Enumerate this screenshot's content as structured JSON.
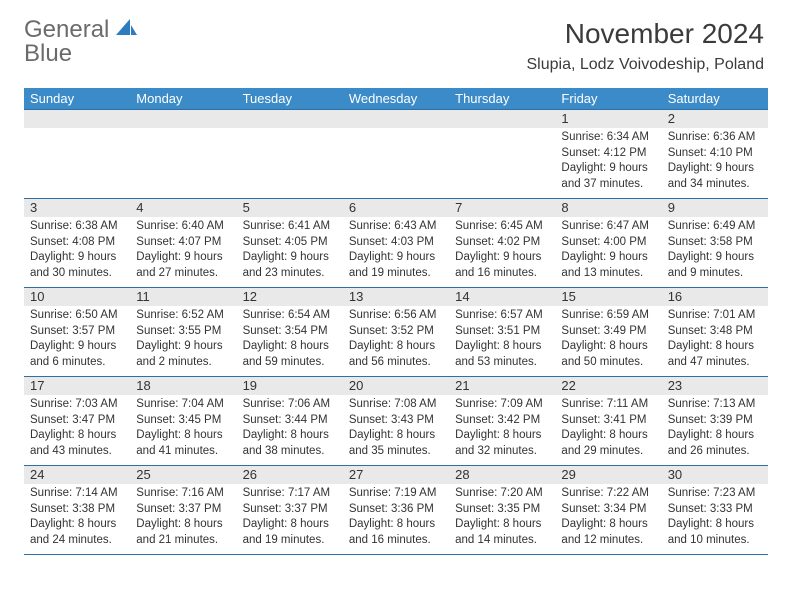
{
  "logo": {
    "word1": "General",
    "word2": "Blue"
  },
  "title": "November 2024",
  "location": "Slupia, Lodz Voivodeship, Poland",
  "colors": {
    "header_bg": "#3b8bc9",
    "rule": "#2f6fa6",
    "date_bg": "#e9e9e9",
    "logo_gray": "#6b6b6b",
    "logo_blue": "#2d7cc0",
    "text": "#333333"
  },
  "dow": [
    "Sunday",
    "Monday",
    "Tuesday",
    "Wednesday",
    "Thursday",
    "Friday",
    "Saturday"
  ],
  "weeks": [
    [
      {
        "date": "",
        "lines": []
      },
      {
        "date": "",
        "lines": []
      },
      {
        "date": "",
        "lines": []
      },
      {
        "date": "",
        "lines": []
      },
      {
        "date": "",
        "lines": []
      },
      {
        "date": "1",
        "lines": [
          "Sunrise: 6:34 AM",
          "Sunset: 4:12 PM",
          "Daylight: 9 hours",
          "and 37 minutes."
        ]
      },
      {
        "date": "2",
        "lines": [
          "Sunrise: 6:36 AM",
          "Sunset: 4:10 PM",
          "Daylight: 9 hours",
          "and 34 minutes."
        ]
      }
    ],
    [
      {
        "date": "3",
        "lines": [
          "Sunrise: 6:38 AM",
          "Sunset: 4:08 PM",
          "Daylight: 9 hours",
          "and 30 minutes."
        ]
      },
      {
        "date": "4",
        "lines": [
          "Sunrise: 6:40 AM",
          "Sunset: 4:07 PM",
          "Daylight: 9 hours",
          "and 27 minutes."
        ]
      },
      {
        "date": "5",
        "lines": [
          "Sunrise: 6:41 AM",
          "Sunset: 4:05 PM",
          "Daylight: 9 hours",
          "and 23 minutes."
        ]
      },
      {
        "date": "6",
        "lines": [
          "Sunrise: 6:43 AM",
          "Sunset: 4:03 PM",
          "Daylight: 9 hours",
          "and 19 minutes."
        ]
      },
      {
        "date": "7",
        "lines": [
          "Sunrise: 6:45 AM",
          "Sunset: 4:02 PM",
          "Daylight: 9 hours",
          "and 16 minutes."
        ]
      },
      {
        "date": "8",
        "lines": [
          "Sunrise: 6:47 AM",
          "Sunset: 4:00 PM",
          "Daylight: 9 hours",
          "and 13 minutes."
        ]
      },
      {
        "date": "9",
        "lines": [
          "Sunrise: 6:49 AM",
          "Sunset: 3:58 PM",
          "Daylight: 9 hours",
          "and 9 minutes."
        ]
      }
    ],
    [
      {
        "date": "10",
        "lines": [
          "Sunrise: 6:50 AM",
          "Sunset: 3:57 PM",
          "Daylight: 9 hours",
          "and 6 minutes."
        ]
      },
      {
        "date": "11",
        "lines": [
          "Sunrise: 6:52 AM",
          "Sunset: 3:55 PM",
          "Daylight: 9 hours",
          "and 2 minutes."
        ]
      },
      {
        "date": "12",
        "lines": [
          "Sunrise: 6:54 AM",
          "Sunset: 3:54 PM",
          "Daylight: 8 hours",
          "and 59 minutes."
        ]
      },
      {
        "date": "13",
        "lines": [
          "Sunrise: 6:56 AM",
          "Sunset: 3:52 PM",
          "Daylight: 8 hours",
          "and 56 minutes."
        ]
      },
      {
        "date": "14",
        "lines": [
          "Sunrise: 6:57 AM",
          "Sunset: 3:51 PM",
          "Daylight: 8 hours",
          "and 53 minutes."
        ]
      },
      {
        "date": "15",
        "lines": [
          "Sunrise: 6:59 AM",
          "Sunset: 3:49 PM",
          "Daylight: 8 hours",
          "and 50 minutes."
        ]
      },
      {
        "date": "16",
        "lines": [
          "Sunrise: 7:01 AM",
          "Sunset: 3:48 PM",
          "Daylight: 8 hours",
          "and 47 minutes."
        ]
      }
    ],
    [
      {
        "date": "17",
        "lines": [
          "Sunrise: 7:03 AM",
          "Sunset: 3:47 PM",
          "Daylight: 8 hours",
          "and 43 minutes."
        ]
      },
      {
        "date": "18",
        "lines": [
          "Sunrise: 7:04 AM",
          "Sunset: 3:45 PM",
          "Daylight: 8 hours",
          "and 41 minutes."
        ]
      },
      {
        "date": "19",
        "lines": [
          "Sunrise: 7:06 AM",
          "Sunset: 3:44 PM",
          "Daylight: 8 hours",
          "and 38 minutes."
        ]
      },
      {
        "date": "20",
        "lines": [
          "Sunrise: 7:08 AM",
          "Sunset: 3:43 PM",
          "Daylight: 8 hours",
          "and 35 minutes."
        ]
      },
      {
        "date": "21",
        "lines": [
          "Sunrise: 7:09 AM",
          "Sunset: 3:42 PM",
          "Daylight: 8 hours",
          "and 32 minutes."
        ]
      },
      {
        "date": "22",
        "lines": [
          "Sunrise: 7:11 AM",
          "Sunset: 3:41 PM",
          "Daylight: 8 hours",
          "and 29 minutes."
        ]
      },
      {
        "date": "23",
        "lines": [
          "Sunrise: 7:13 AM",
          "Sunset: 3:39 PM",
          "Daylight: 8 hours",
          "and 26 minutes."
        ]
      }
    ],
    [
      {
        "date": "24",
        "lines": [
          "Sunrise: 7:14 AM",
          "Sunset: 3:38 PM",
          "Daylight: 8 hours",
          "and 24 minutes."
        ]
      },
      {
        "date": "25",
        "lines": [
          "Sunrise: 7:16 AM",
          "Sunset: 3:37 PM",
          "Daylight: 8 hours",
          "and 21 minutes."
        ]
      },
      {
        "date": "26",
        "lines": [
          "Sunrise: 7:17 AM",
          "Sunset: 3:37 PM",
          "Daylight: 8 hours",
          "and 19 minutes."
        ]
      },
      {
        "date": "27",
        "lines": [
          "Sunrise: 7:19 AM",
          "Sunset: 3:36 PM",
          "Daylight: 8 hours",
          "and 16 minutes."
        ]
      },
      {
        "date": "28",
        "lines": [
          "Sunrise: 7:20 AM",
          "Sunset: 3:35 PM",
          "Daylight: 8 hours",
          "and 14 minutes."
        ]
      },
      {
        "date": "29",
        "lines": [
          "Sunrise: 7:22 AM",
          "Sunset: 3:34 PM",
          "Daylight: 8 hours",
          "and 12 minutes."
        ]
      },
      {
        "date": "30",
        "lines": [
          "Sunrise: 7:23 AM",
          "Sunset: 3:33 PM",
          "Daylight: 8 hours",
          "and 10 minutes."
        ]
      }
    ]
  ]
}
